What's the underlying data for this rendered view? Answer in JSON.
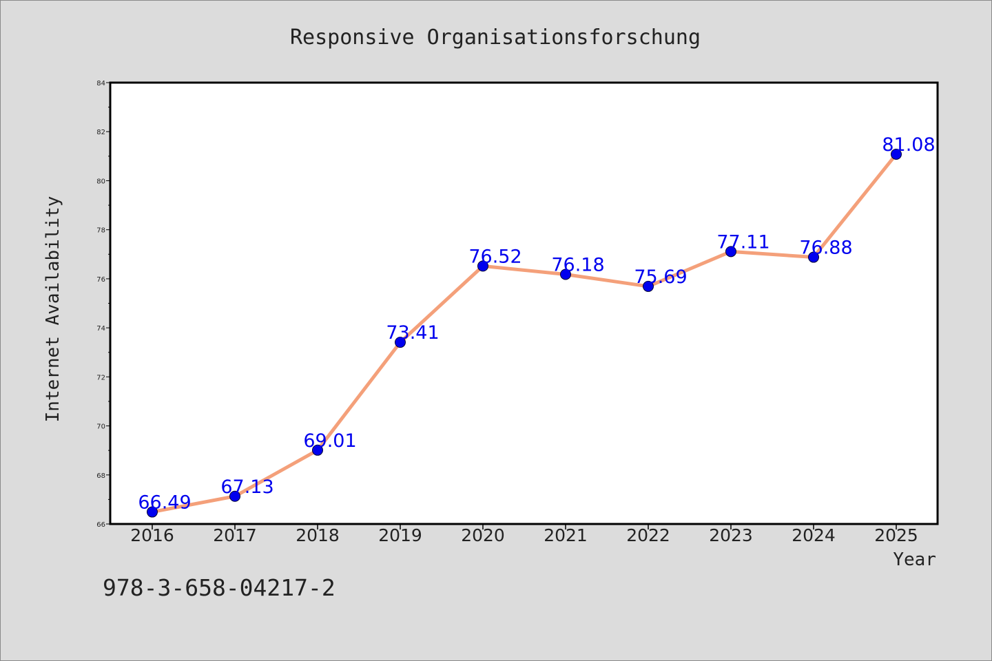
{
  "chart_data": {
    "type": "line",
    "title": "Responsive Organisationsforschung",
    "xlabel": "Year",
    "ylabel": "Internet Availability",
    "categories": [
      "2016",
      "2017",
      "2018",
      "2019",
      "2020",
      "2021",
      "2022",
      "2023",
      "2024",
      "2025"
    ],
    "series": [
      {
        "values": [
          66.49,
          67.13,
          69.01,
          73.41,
          76.52,
          76.18,
          75.69,
          77.11,
          76.88,
          81.08
        ],
        "data_labels": [
          "66.49",
          "67.13",
          "69.01",
          "73.41",
          "76.52",
          "76.18",
          "75.69",
          "77.11",
          "76.88",
          "81.08"
        ]
      }
    ],
    "ylim": [
      66,
      84
    ],
    "yticks": [
      "66",
      "68",
      "70",
      "72",
      "74",
      "76",
      "78",
      "80",
      "82",
      "84"
    ],
    "grid": false,
    "line_color": "#f4a07a",
    "marker_color": "#0000ee",
    "label_color": "#0000ee"
  },
  "footer": {
    "isbn": "978-3-658-04217-2"
  }
}
